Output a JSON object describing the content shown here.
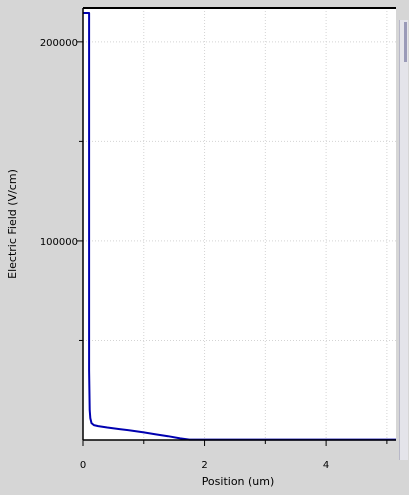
{
  "chart_data": {
    "type": "line",
    "title": "",
    "xlabel": "Position (um)",
    "ylabel": "Electric Field (V/cm)",
    "xlim": [
      0,
      5.15
    ],
    "ylim": [
      0,
      217000
    ],
    "x_ticks": [
      0,
      2,
      4
    ],
    "x_tick_labels": [
      "0",
      "2",
      "4"
    ],
    "x_minor_ticks": [
      1,
      3,
      5
    ],
    "y_ticks": [
      100000,
      200000
    ],
    "y_tick_labels": [
      "100000",
      "200000"
    ],
    "y_minor_ticks": [
      50000,
      150000
    ],
    "grid": true,
    "legend": "none",
    "series": [
      {
        "color": "#0000b0",
        "x": [
          0.0,
          0.1,
          0.1,
          0.105,
          0.11,
          0.12,
          0.14,
          0.18,
          0.25,
          0.4,
          0.6,
          0.8,
          1.0,
          1.2,
          1.4,
          1.6,
          1.75,
          2.0,
          3.0,
          4.0,
          5.15
        ],
        "y": [
          214500,
          214500,
          35000,
          25000,
          15000,
          11000,
          8500,
          7500,
          7000,
          6300,
          5500,
          4700,
          3800,
          2800,
          1900,
          800,
          200,
          200,
          200,
          200,
          200
        ]
      }
    ]
  }
}
